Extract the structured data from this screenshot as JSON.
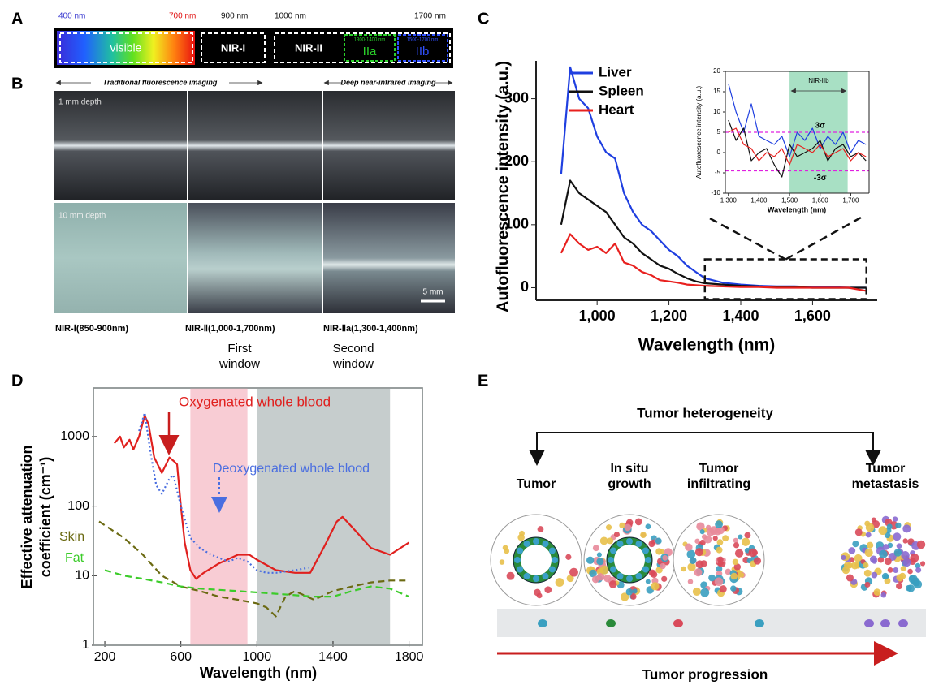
{
  "panels": {
    "a": {
      "label": "A",
      "wavelengths": [
        "400 nm",
        "700 nm",
        "900 nm",
        "1000 nm",
        "1700 nm"
      ],
      "bands": [
        "visible",
        "NIR-I",
        "NIR-II",
        "IIa",
        "IIb"
      ],
      "subbands": [
        "1300-1400 nm",
        "1500-1700 nm"
      ]
    },
    "b": {
      "label": "B",
      "headers": [
        "Traditional fluorescence imaging",
        "Deep near-infrared imaging"
      ],
      "depths": [
        "1 mm depth",
        "10 mm depth"
      ],
      "scale_bar": "5 mm",
      "columns": [
        "NIR-Ⅰ(850-900nm)",
        "NIR-Ⅱ(1,000-1,700nm)",
        "NIR-Ⅱa(1,300-1,400nm)"
      ],
      "windows": [
        [
          "First",
          "window"
        ],
        [
          "Second",
          "window"
        ]
      ]
    },
    "c": {
      "label": "C"
    },
    "d": {
      "label": "D"
    },
    "e": {
      "label": "E",
      "top": "Tumor heterogeneity",
      "bottom": "Tumor progression",
      "stages": [
        [
          "Tumor"
        ],
        [
          "In situ",
          "growth"
        ],
        [
          "Tumor",
          "infiltrating"
        ],
        [
          "Tumor",
          "metastasis"
        ]
      ]
    }
  },
  "chart_data": [
    {
      "type": "line",
      "x_label": "Wavelength (nm)",
      "y_label": "Autofluorescence intensity (a.u.)",
      "x": [
        900,
        925,
        950,
        975,
        1000,
        1025,
        1050,
        1075,
        1100,
        1125,
        1150,
        1175,
        1200,
        1225,
        1250,
        1275,
        1300,
        1350,
        1400,
        1450,
        1500,
        1550,
        1600,
        1650,
        1700,
        1750
      ],
      "series": [
        {
          "name": "Liver",
          "color": "#1f3fe0",
          "values": [
            180,
            350,
            300,
            285,
            240,
            215,
            205,
            150,
            120,
            100,
            90,
            75,
            60,
            50,
            35,
            25,
            15,
            8,
            5,
            3,
            2,
            2,
            1,
            1,
            0,
            0
          ]
        },
        {
          "name": "Spleen",
          "color": "#111111",
          "values": [
            100,
            170,
            150,
            140,
            130,
            120,
            100,
            80,
            70,
            55,
            45,
            35,
            30,
            22,
            15,
            10,
            7,
            5,
            3,
            2,
            1,
            1,
            0,
            0,
            0,
            0
          ]
        },
        {
          "name": "Heart",
          "color": "#e8201e",
          "values": [
            55,
            85,
            70,
            60,
            65,
            55,
            70,
            40,
            35,
            25,
            20,
            12,
            10,
            8,
            5,
            4,
            3,
            2,
            1,
            1,
            0,
            0,
            0,
            0,
            0,
            -5
          ]
        }
      ],
      "xlim": [
        830,
        1780
      ],
      "ylim": [
        -20,
        360
      ],
      "xticks": [
        {
          "value": 1000,
          "label": "1,000"
        },
        {
          "value": 1200,
          "label": "1,200"
        },
        {
          "value": 1400,
          "label": "1,400"
        },
        {
          "value": 1600,
          "label": "1,600"
        }
      ],
      "yticks": [
        0,
        100,
        200,
        300
      ],
      "legend": "upper left",
      "zoom": {
        "xlim": [
          1300,
          1750
        ],
        "ylim": [
          -18,
          45
        ]
      }
    },
    {
      "type": "line",
      "x_label": "Wavelength (nm)",
      "y_label": "Autofluorescence intensity (a.u.)",
      "x": [
        1300,
        1325,
        1350,
        1375,
        1400,
        1425,
        1450,
        1475,
        1500,
        1525,
        1550,
        1575,
        1600,
        1625,
        1650,
        1675,
        1700,
        1725,
        1750
      ],
      "series": [
        {
          "color": "#1f3fe0",
          "values": [
            17,
            10,
            5,
            12,
            4,
            3,
            2,
            4,
            -1,
            5,
            3,
            6,
            1,
            4,
            2,
            5,
            0,
            3,
            2
          ]
        },
        {
          "color": "#111111",
          "values": [
            8,
            3,
            6,
            -2,
            0,
            1,
            -3,
            -6,
            2,
            -1,
            0,
            1,
            3,
            -2,
            1,
            2,
            -1,
            0,
            -2
          ]
        },
        {
          "color": "#e8201e",
          "values": [
            5,
            6,
            2,
            1,
            -2,
            0,
            -1,
            1,
            -3,
            2,
            1,
            0,
            2,
            -1,
            0,
            1,
            -2,
            0,
            -1
          ]
        }
      ],
      "xlim": [
        1290,
        1760
      ],
      "ylim": [
        -10,
        20
      ],
      "xticks": [
        {
          "value": 1300,
          "label": "1,300"
        },
        {
          "value": 1400,
          "label": "1,400"
        },
        {
          "value": 1500,
          "label": "1,500"
        },
        {
          "value": 1600,
          "label": "1,600"
        },
        {
          "value": 1700,
          "label": "1,700"
        }
      ],
      "yticks": [
        -10,
        -5,
        0,
        5,
        10,
        15,
        20
      ],
      "shaded": [
        {
          "range": [
            1500,
            1690
          ],
          "color": "#a8e0c4",
          "label": "NIR-IIb"
        }
      ],
      "hlines": [
        {
          "value": 5,
          "label": "3σ"
        },
        {
          "value": -4.5,
          "label": "-3σ"
        }
      ]
    },
    {
      "type": "line",
      "log_y": true,
      "x_label": "Wavelength (nm)",
      "y_label": [
        "Effective attenuation",
        "coefficient (cm⁻¹)"
      ],
      "series": [
        {
          "name": "Oxygenated whole blood",
          "color": "#e0201e",
          "line_style": "solid",
          "x": [
            250,
            280,
            300,
            330,
            350,
            380,
            410,
            430,
            460,
            500,
            540,
            560,
            580,
            600,
            620,
            650,
            680,
            720,
            800,
            900,
            960,
            1000,
            1100,
            1200,
            1280,
            1350,
            1420,
            1450,
            1500,
            1600,
            1700,
            1800
          ],
          "values": [
            800,
            1000,
            700,
            900,
            650,
            1000,
            2000,
            1500,
            500,
            300,
            500,
            450,
            400,
            100,
            30,
            12,
            9,
            11,
            15,
            20,
            20,
            17,
            12,
            11,
            11,
            25,
            60,
            70,
            50,
            25,
            20,
            30
          ]
        },
        {
          "name": "Deoxygenated whole blood",
          "color": "#4a6ee0",
          "line_style": "dotted",
          "x": [
            380,
            410,
            440,
            470,
            500,
            540,
            560,
            600,
            650,
            700,
            760,
            800,
            850,
            900,
            950,
            1000,
            1050,
            1100,
            1200,
            1270
          ],
          "values": [
            1200,
            2200,
            600,
            200,
            150,
            250,
            280,
            100,
            35,
            25,
            20,
            18,
            16,
            18,
            16,
            12,
            11,
            11,
            12,
            13
          ]
        },
        {
          "name": "Skin",
          "color": "#6b6a12",
          "line_style": "dashed",
          "x": [
            170,
            300,
            400,
            500,
            600,
            700,
            800,
            900,
            1000,
            1050,
            1100,
            1150,
            1200,
            1300,
            1400,
            1500,
            1600,
            1700,
            1800
          ],
          "values": [
            60,
            35,
            20,
            10,
            7,
            6,
            5,
            4.5,
            4,
            3.5,
            2.6,
            5,
            6,
            4.5,
            6,
            7,
            8,
            8.5,
            8.5
          ]
        },
        {
          "name": "Fat",
          "color": "#3ccc2a",
          "line_style": "dashed",
          "x": [
            200,
            300,
            400,
            500,
            600,
            700,
            900,
            1100,
            1300,
            1400,
            1500,
            1600,
            1700,
            1800
          ],
          "values": [
            12,
            10,
            9,
            8,
            7,
            6.5,
            6,
            5.5,
            5,
            5,
            6,
            7,
            6.5,
            5
          ]
        }
      ],
      "xlim": [
        140,
        1870
      ],
      "ylim": [
        1,
        5000
      ],
      "xticks": [
        200,
        600,
        1000,
        1400,
        1800
      ],
      "yticks": [
        1,
        10,
        100,
        1000
      ],
      "shaded": [
        {
          "range": [
            650,
            950
          ],
          "color": "#f8ccd4"
        },
        {
          "range": [
            1000,
            1700
          ],
          "color": "#c6cdcd"
        }
      ]
    }
  ]
}
